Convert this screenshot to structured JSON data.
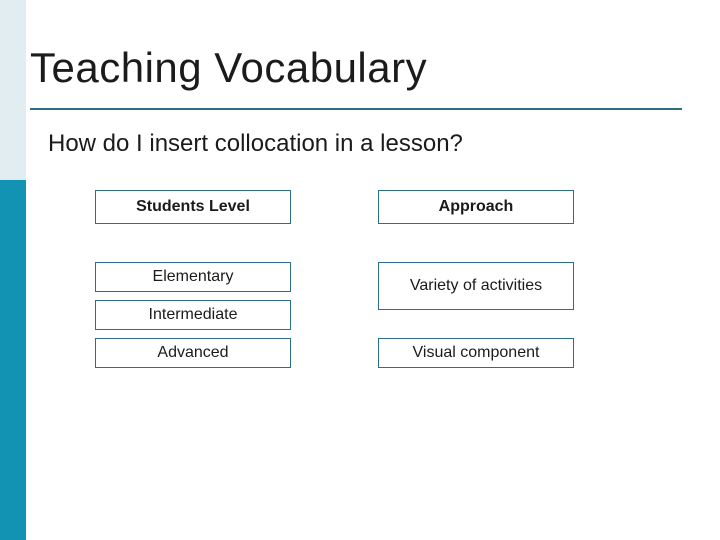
{
  "slide": {
    "title": "Teaching Vocabulary",
    "subtitle": "How do I insert collocation in a lesson?",
    "accent_color": "#2b6f85",
    "stripe_top_color": "#e1edf1",
    "stripe_bottom_color": "#1293b4",
    "background_color": "#ffffff",
    "title_fontsize": 42,
    "subtitle_fontsize": 24,
    "box_fontsize": 16
  },
  "columns": {
    "left": {
      "header": "Students Level",
      "items": [
        "Elementary",
        "Intermediate",
        "Advanced"
      ]
    },
    "right": {
      "header": "Approach",
      "items": [
        "Variety of activities",
        "Visual component"
      ]
    }
  }
}
